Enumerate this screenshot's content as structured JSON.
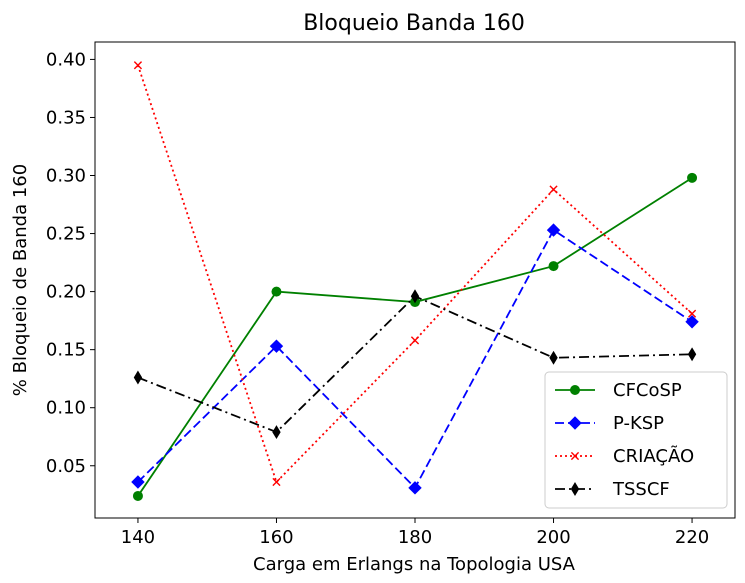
{
  "chart_data": {
    "type": "line",
    "title": "Bloqueio Banda 160",
    "xlabel": "Carga em Erlangs na Topologia USA",
    "ylabel": "% Bloqueio de Banda 160",
    "x": [
      140,
      160,
      180,
      200,
      220
    ],
    "xticks": [
      "140",
      "160",
      "180",
      "200",
      "220"
    ],
    "xlim": [
      133.8,
      226.2
    ],
    "ylim": [
      0.005,
      0.415
    ],
    "yticks": [
      "0.05",
      "0.10",
      "0.15",
      "0.20",
      "0.25",
      "0.30",
      "0.35",
      "0.40"
    ],
    "grid": false,
    "legend_position": "bottom-right",
    "series": [
      {
        "name": "CFCoSP",
        "color": "#008000",
        "dash": "solid",
        "marker": "circle",
        "values": [
          0.024,
          0.2,
          0.191,
          0.222,
          0.298
        ]
      },
      {
        "name": "P-KSP",
        "color": "#0000ff",
        "dash": "dashed",
        "marker": "diamond",
        "values": [
          0.036,
          0.153,
          0.031,
          0.253,
          0.174
        ]
      },
      {
        "name": "CRIAÇÃO",
        "color": "#ff0000",
        "dash": "dotted",
        "marker": "x",
        "values": [
          0.395,
          0.036,
          0.158,
          0.288,
          0.181
        ]
      },
      {
        "name": "TSSCF",
        "color": "#000000",
        "dash": "dashdot",
        "marker": "thin-diamond",
        "values": [
          0.126,
          0.079,
          0.196,
          0.143,
          0.146
        ]
      }
    ]
  }
}
